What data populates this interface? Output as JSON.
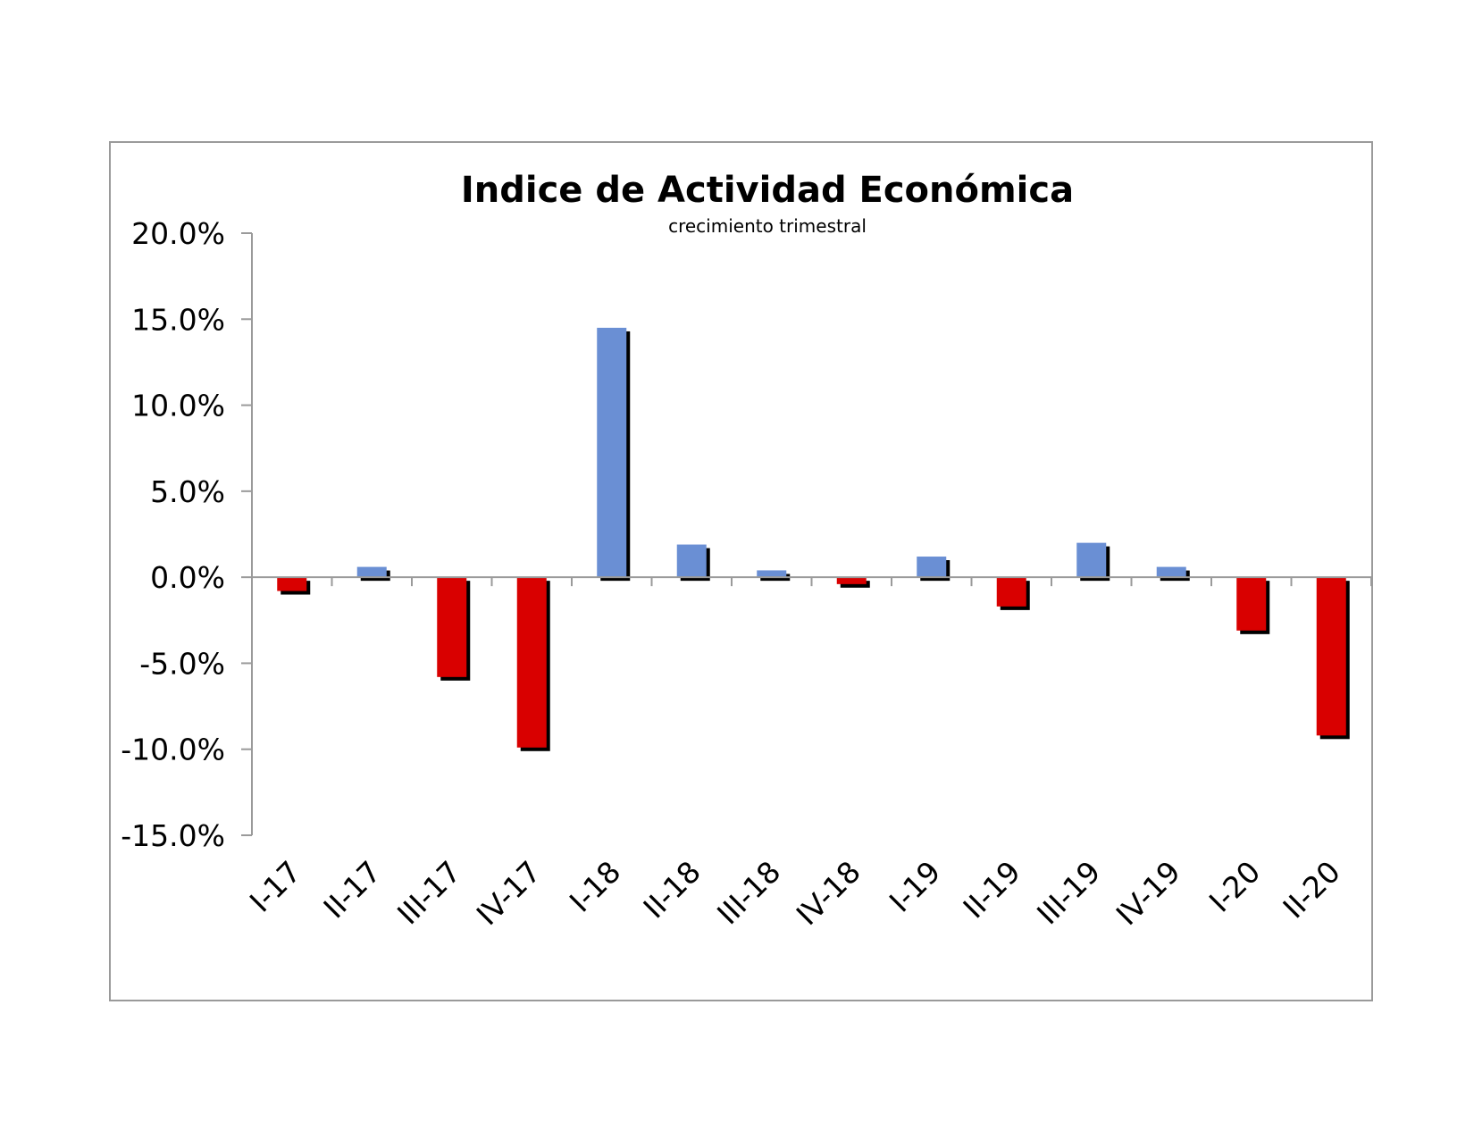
{
  "chart_data": {
    "type": "bar",
    "title": "Indice de Actividad Económica",
    "subtitle": "crecimiento trimestral",
    "xlabel": "",
    "ylabel": "",
    "categories": [
      "I-17",
      "II-17",
      "III-17",
      "IV-17",
      "I-18",
      "II-18",
      "III-18",
      "IV-18",
      "I-19",
      "II-19",
      "III-19",
      "IV-19",
      "I-20",
      "II-20"
    ],
    "values": [
      -0.8,
      0.6,
      -5.8,
      -9.9,
      14.5,
      1.9,
      0.4,
      -0.4,
      1.2,
      -1.7,
      2.0,
      0.6,
      -3.1,
      -9.2
    ],
    "ylim": [
      -15,
      20
    ],
    "yticks": [
      "20.0%",
      "15.0%",
      "10.0%",
      "5.0%",
      "0.0%",
      "-5.0%",
      "-10.0%",
      "-15.0%"
    ],
    "ytick_values": [
      20,
      15,
      10,
      5,
      0,
      -5,
      -10,
      -15
    ],
    "grid": false,
    "legend": "none",
    "colors": {
      "positive": "#6a8fd4",
      "negative": "#d90000",
      "shadow": "#000000",
      "axis": "#9a9a9a"
    }
  }
}
